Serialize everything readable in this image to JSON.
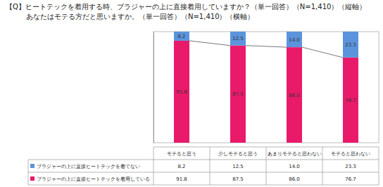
{
  "chart_data": {
    "type": "bar",
    "title": "【Q】ヒートテックを着用する時、ブラジャーの上に直接着用していますか？（単一回答）（N=1,410）（縦軸）",
    "subtitle": "あなたはモテる方だと思いますか。（単一回答）（N=1,410）（横軸）",
    "categories": [
      "モテると思う",
      "少しモテると思う",
      "あまりモテると思わない",
      "モテると思わない"
    ],
    "series": [
      {
        "name": "ブラジャーの上に直接ヒートテックを着てない",
        "color": "#5b94dc",
        "values": [
          8.2,
          12.5,
          14.0,
          23.3
        ],
        "value_labels": [
          "8.2",
          "12.5",
          "14.0",
          "23.3"
        ]
      },
      {
        "name": "ブラジャーの上に直接ヒートテックを着用している",
        "color": "#ea1a6a",
        "values": [
          91.8,
          87.5,
          86.0,
          76.7
        ],
        "value_labels": [
          "91.8",
          "87.5",
          "86.0",
          "76.7"
        ]
      }
    ],
    "stacked": true,
    "data_labels": true,
    "tick_labels": false,
    "grid": false,
    "ylim": [
      0,
      100
    ],
    "yticks": []
  }
}
